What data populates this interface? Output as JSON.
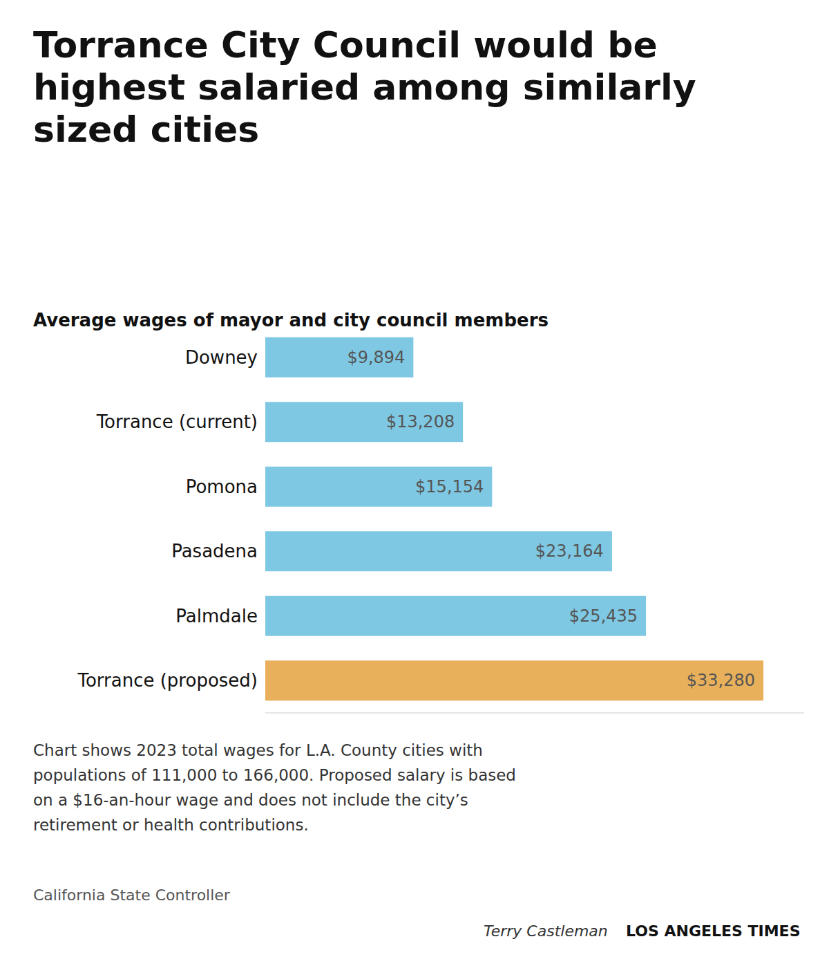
{
  "chart_data": {
    "type": "bar",
    "orientation": "horizontal",
    "title": "Torrance City Council would be\nhighest salaried among similarly\nsized cities",
    "subtitle": "Average wages of mayor and city council members",
    "categories": [
      "Downey",
      "Torrance (current)",
      "Pomona",
      "Pasadena",
      "Palmdale",
      "Torrance (proposed)"
    ],
    "values": [
      9894,
      13208,
      15154,
      23164,
      25435,
      33280
    ],
    "value_labels": [
      "$9,894",
      "$13,208",
      "$15,154",
      "$23,164",
      "$25,435",
      "$33,280"
    ],
    "colors": [
      "#7ec8e3",
      "#7ec8e3",
      "#7ec8e3",
      "#7ec8e3",
      "#7ec8e3",
      "#e8b05a"
    ],
    "data_labels": true,
    "tick_labels": false,
    "grid": false,
    "xlim": [
      0,
      36000
    ],
    "footnote": "Chart shows 2023 total wages for L.A. County cities with\npopulations of 111,000 to 166,000. Proposed salary is based\non a $16-an-hour wage and does not include the city’s\nretirement or health contributions.",
    "source": "California State Controller",
    "credit_name": "Terry Castleman",
    "credit_org": "LOS ANGELES TIMES"
  }
}
